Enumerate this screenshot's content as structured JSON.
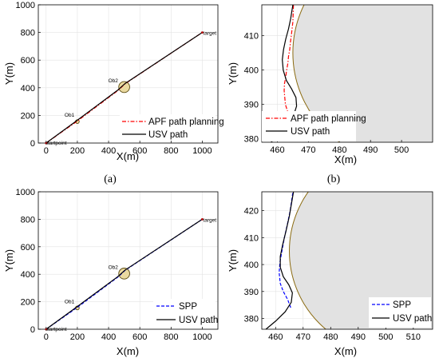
{
  "captions": [
    "(a)",
    "(b)"
  ],
  "chart_data": [
    {
      "type": "line",
      "panel": "top-left",
      "xlabel": "X(m)",
      "ylabel": "Y(m)",
      "xlim": [
        -50,
        1100
      ],
      "ylim": [
        0,
        1000
      ],
      "xticks": [
        0,
        200,
        400,
        600,
        800,
        1000
      ],
      "yticks": [
        0,
        200,
        400,
        600,
        800,
        1000
      ],
      "grid": true,
      "legend": "bottom-right",
      "series": [
        {
          "name": "APF path planning",
          "color": "#ff0000",
          "style": "dashdot",
          "x": [
            0,
            195,
            460,
            505,
            1000
          ],
          "y": [
            0,
            155,
            380,
            428,
            800
          ]
        },
        {
          "name": "USV path",
          "color": "#000000",
          "style": "solid",
          "x": [
            0,
            190,
            458,
            505,
            1000
          ],
          "y": [
            0,
            157,
            382,
            430,
            800
          ]
        }
      ],
      "obstacles": [
        {
          "label": "Ob1",
          "x": 200,
          "y": 155,
          "r": 12
        },
        {
          "label": "Ob2",
          "x": 500,
          "y": 405,
          "r": 35
        }
      ],
      "points": [
        {
          "label": "startpoint",
          "x": 0,
          "y": 0
        },
        {
          "label": "target",
          "x": 1000,
          "y": 800
        }
      ]
    },
    {
      "type": "line",
      "panel": "top-right",
      "xlabel": "X(m)",
      "ylabel": "Y(m)",
      "xlim": [
        455,
        510
      ],
      "ylim": [
        379,
        419
      ],
      "xticks": [
        460,
        470,
        480,
        490,
        500
      ],
      "yticks": [
        380,
        390,
        400,
        410
      ],
      "grid": true,
      "legend": "bottom-left",
      "series": [
        {
          "name": "APF path planning",
          "color": "#ff0000",
          "style": "dashdot",
          "x": [
            464.5,
            464,
            463.3,
            462.6,
            462.4,
            462.2,
            462.3,
            462.7,
            463.0,
            463.4,
            463.6,
            464.0,
            464.2,
            464.5,
            465.0,
            465.2
          ],
          "y": [
            384.0,
            386.0,
            388.0,
            390.0,
            392.0,
            394.0,
            396.0,
            398.0,
            400.0,
            402.0,
            404.0,
            406.0,
            408.0,
            410.0,
            414.0,
            419.0
          ]
        },
        {
          "name": "USV path",
          "color": "#000000",
          "style": "solid",
          "x": [
            458.0,
            461.0,
            463.5,
            465.3,
            466.2,
            466.0,
            464.6,
            462.9,
            461.9,
            461.6,
            462.0,
            462.7,
            463.6,
            464.3,
            465.0
          ],
          "y": [
            379.0,
            381.5,
            384.0,
            387.0,
            389.5,
            392.0,
            394.5,
            397.0,
            400.0,
            403.0,
            406.0,
            409.0,
            412.0,
            415.0,
            419.0
          ]
        }
      ],
      "obstacle": {
        "cx": 500,
        "cy": 405,
        "r": 35
      }
    },
    {
      "type": "line",
      "panel": "bottom-left",
      "xlabel": "X(m)",
      "ylabel": "Y(m)",
      "xlim": [
        -50,
        1100
      ],
      "ylim": [
        0,
        1000
      ],
      "xticks": [
        0,
        200,
        400,
        600,
        800,
        1000
      ],
      "yticks": [
        0,
        200,
        400,
        600,
        800,
        1000
      ],
      "grid": true,
      "legend": "bottom-right",
      "series": [
        {
          "name": "SPP",
          "color": "#0000ff",
          "style": "dashed",
          "x": [
            0,
            195,
            460,
            505,
            1000
          ],
          "y": [
            0,
            155,
            380,
            428,
            800
          ]
        },
        {
          "name": "USV path",
          "color": "#000000",
          "style": "solid",
          "x": [
            0,
            190,
            458,
            505,
            1000
          ],
          "y": [
            0,
            157,
            382,
            430,
            800
          ]
        }
      ],
      "obstacles": [
        {
          "label": "Ob1",
          "x": 200,
          "y": 155,
          "r": 12
        },
        {
          "label": "Ob2",
          "x": 500,
          "y": 405,
          "r": 35
        }
      ],
      "points": [
        {
          "label": "startpoint",
          "x": 0,
          "y": 0
        },
        {
          "label": "target",
          "x": 1000,
          "y": 800
        }
      ]
    },
    {
      "type": "line",
      "panel": "bottom-right",
      "xlabel": "X(m)",
      "ylabel": "Y(m)",
      "xlim": [
        455,
        517
      ],
      "ylim": [
        376,
        427
      ],
      "xticks": [
        460,
        470,
        480,
        490,
        500,
        510
      ],
      "yticks": [
        380,
        390,
        400,
        410,
        420
      ],
      "grid": true,
      "legend": "bottom-right",
      "series": [
        {
          "name": "SPP",
          "color": "#0000ff",
          "style": "dashed",
          "x": [
            465.5,
            464.4,
            462.8,
            461.7,
            461.3,
            461.6,
            462.3,
            463.2,
            464.3,
            465.3,
            466.3
          ],
          "y": [
            384.0,
            387.0,
            390.0,
            393.0,
            397.0,
            401.0,
            405.0,
            410.0,
            415.0,
            420.0,
            427.0
          ]
        },
        {
          "name": "USV path",
          "color": "#000000",
          "style": "solid",
          "x": [
            456.5,
            460.0,
            463.5,
            465.7,
            466.1,
            464.8,
            462.8,
            461.7,
            461.7,
            462.6,
            463.8,
            465.0,
            466.5
          ],
          "y": [
            376.0,
            379.0,
            382.5,
            386.0,
            389.5,
            392.5,
            395.5,
            399.0,
            403.0,
            407.5,
            412.5,
            418.0,
            427.0
          ]
        }
      ],
      "obstacle": {
        "cx": 502,
        "cy": 405,
        "r": 37
      }
    }
  ]
}
